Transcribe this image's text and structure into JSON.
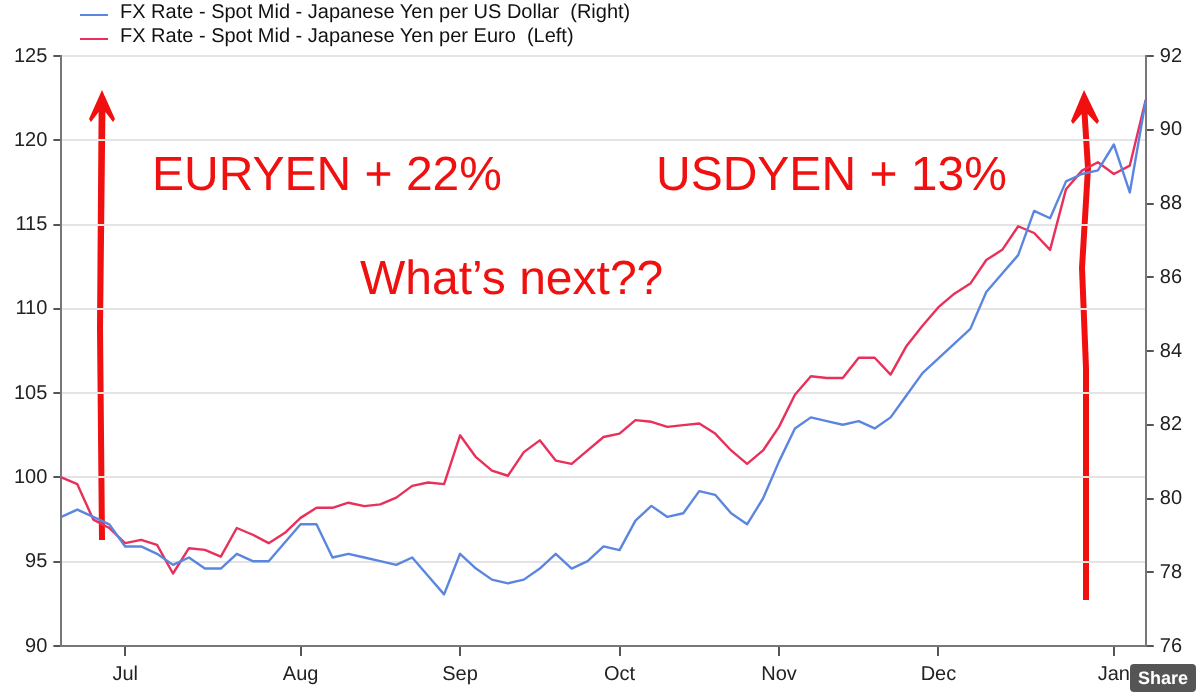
{
  "chart_data": {
    "type": "line",
    "categories": [
      null,
      null,
      null,
      null,
      "Jul",
      null,
      null,
      null,
      null,
      null,
      null,
      null,
      null,
      null,
      null,
      "Aug",
      null,
      null,
      null,
      null,
      null,
      null,
      null,
      null,
      null,
      "Sep",
      null,
      null,
      null,
      null,
      null,
      null,
      null,
      null,
      null,
      "Oct",
      null,
      null,
      null,
      null,
      null,
      null,
      null,
      null,
      null,
      "Nov",
      null,
      null,
      null,
      null,
      null,
      null,
      null,
      null,
      null,
      "Dec",
      null,
      null,
      null,
      null,
      null,
      null,
      null,
      null,
      null,
      null,
      "Jan",
      null,
      null
    ],
    "series": [
      {
        "name": "FX Rate - Spot Mid - Japanese Yen per US Dollar  (Right)",
        "color": "#5b86e0",
        "axis": "y2",
        "values": [
          79.5,
          79.7,
          79.5,
          79.3,
          78.7,
          78.7,
          78.5,
          78.2,
          78.4,
          78.1,
          78.1,
          78.5,
          78.3,
          78.3,
          78.8,
          79.3,
          79.3,
          78.4,
          78.5,
          78.4,
          78.3,
          78.2,
          78.4,
          77.9,
          77.4,
          78.5,
          78.1,
          77.8,
          77.7,
          77.8,
          78.1,
          78.5,
          78.1,
          78.3,
          78.7,
          78.6,
          79.4,
          79.8,
          79.5,
          79.6,
          80.2,
          80.1,
          79.6,
          79.3,
          80.0,
          81.0,
          81.9,
          82.2,
          82.1,
          82.0,
          82.1,
          81.9,
          82.2,
          82.8,
          83.4,
          83.8,
          84.2,
          84.6,
          85.6,
          86.1,
          86.6,
          87.8,
          87.6,
          88.6,
          88.8,
          88.9,
          89.6,
          88.3,
          90.8
        ]
      },
      {
        "name": "FX Rate - Spot Mid - Japanese Yen per Euro  (Left)",
        "color": "#e8305a",
        "values": [
          100.0,
          99.6,
          97.5,
          97.0,
          96.1,
          96.3,
          96.0,
          94.3,
          95.8,
          95.7,
          95.3,
          97.0,
          96.6,
          96.1,
          96.7,
          97.6,
          98.2,
          98.2,
          98.5,
          98.3,
          98.4,
          98.8,
          99.5,
          99.7,
          99.6,
          102.5,
          101.2,
          100.4,
          100.1,
          101.5,
          102.2,
          101.0,
          100.8,
          101.6,
          102.4,
          102.6,
          103.4,
          103.3,
          103.0,
          103.1,
          103.2,
          102.6,
          101.6,
          100.8,
          101.6,
          103.0,
          104.9,
          106.0,
          105.9,
          105.9,
          107.1,
          107.1,
          106.1,
          107.8,
          109.0,
          110.1,
          110.9,
          111.5,
          112.9,
          113.5,
          114.9,
          114.5,
          113.5,
          117.1,
          118.2,
          118.7,
          118.0,
          118.5,
          122.4
        ]
      }
    ],
    "ylim": [
      90,
      125
    ],
    "yticks": [
      90,
      95,
      100,
      105,
      110,
      115,
      120,
      125
    ],
    "y2lim": [
      76,
      92
    ],
    "y2ticks": [
      76,
      78,
      80,
      82,
      84,
      86,
      88,
      90,
      92
    ],
    "grid": "y",
    "legend": "top left",
    "marker": "none",
    "line_style": "solid",
    "annotations": [
      "EURYEN + 22%",
      "USDYEN + 13%",
      "What’s next??",
      "Share"
    ]
  }
}
